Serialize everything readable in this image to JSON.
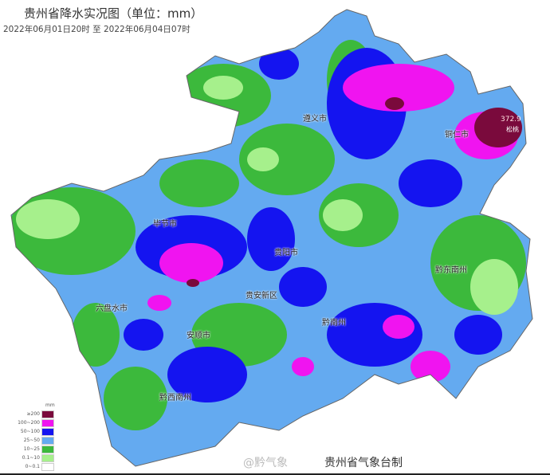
{
  "title": "贵州省降水实况图（单位：mm）",
  "subtitle": "2022年06月01日20时  至  2022年06月04日07时",
  "cities": [
    {
      "name": "遵义市"
    },
    {
      "name": "铜仁市"
    },
    {
      "name": "毕节市"
    },
    {
      "name": "贵阳市"
    },
    {
      "name": "贵安新区"
    },
    {
      "name": "六盘水市"
    },
    {
      "name": "安顺市"
    },
    {
      "name": "黔南州"
    },
    {
      "name": "黔东南州"
    },
    {
      "name": "黔西南州"
    }
  ],
  "max_station": {
    "value": "372.9",
    "name": "松桃"
  },
  "legend": {
    "unit": "mm",
    "items": [
      {
        "label": "≥200",
        "color": "#7a0a3c"
      },
      {
        "label": "100~200",
        "color": "#f014f0"
      },
      {
        "label": "50~100",
        "color": "#1414f0"
      },
      {
        "label": "25~50",
        "color": "#64aaf0"
      },
      {
        "label": "10~25",
        "color": "#3cb93c"
      },
      {
        "label": "0.1~10",
        "color": "#a6f08c"
      },
      {
        "label": "0~0.1",
        "color": "#ffffff"
      }
    ]
  },
  "watermark": "@黔气象",
  "credit": "贵州省气象台制"
}
